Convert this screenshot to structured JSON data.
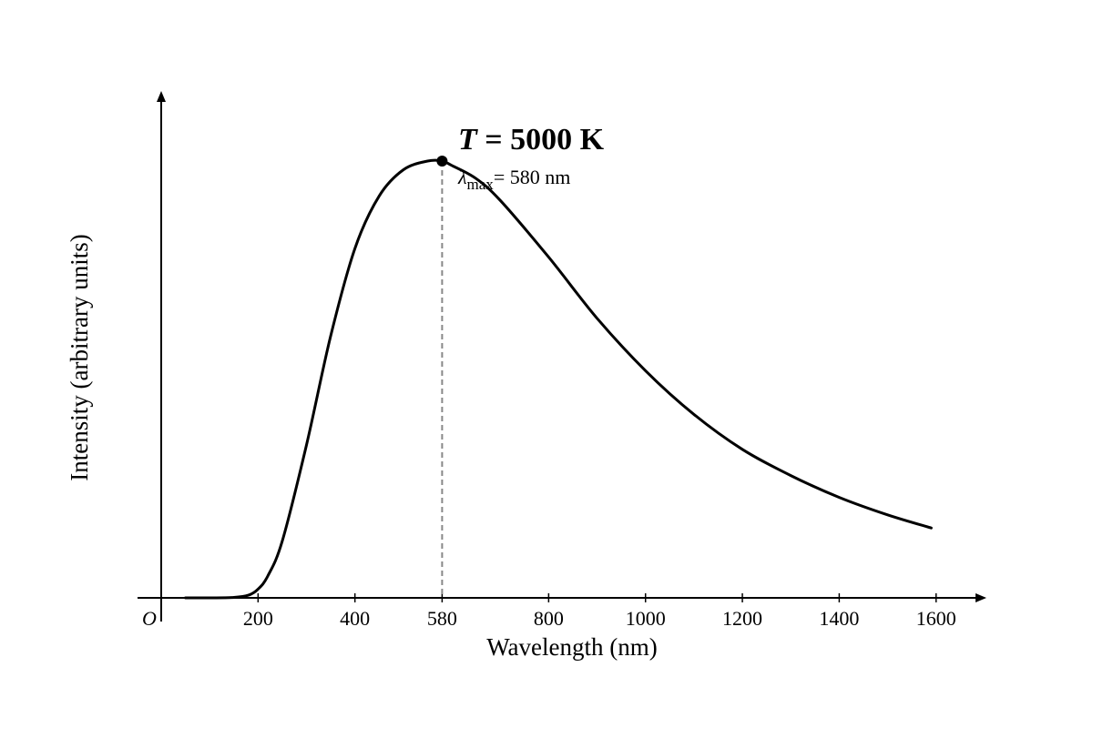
{
  "chart_data": {
    "type": "line",
    "xlabel": "Wavelength (nm)",
    "ylabel": "Intensity (arbitrary units)",
    "origin_label": "O",
    "x_ticks": [
      200,
      400,
      580,
      800,
      1000,
      1200,
      1400,
      1600
    ],
    "xlim": [
      0,
      1700
    ],
    "ylim": [
      0,
      1.1
    ],
    "y_ticks_labeled": false,
    "grid": false,
    "legend": "none",
    "series": [
      {
        "temperature_label": {
          "prefix": "T",
          "text": " = 5000 K"
        },
        "x": [
          50,
          100,
          150,
          180,
          200,
          220,
          250,
          300,
          350,
          400,
          450,
          500,
          550,
          580,
          600,
          650,
          700,
          800,
          900,
          1000,
          1100,
          1200,
          1300,
          1400,
          1500,
          1590
        ],
        "y": [
          0.0,
          0.0,
          0.001,
          0.006,
          0.02,
          0.05,
          0.13,
          0.35,
          0.6,
          0.8,
          0.92,
          0.98,
          1.0,
          1.0,
          0.99,
          0.96,
          0.91,
          0.78,
          0.64,
          0.52,
          0.42,
          0.34,
          0.28,
          0.23,
          0.19,
          0.16
        ]
      }
    ],
    "annotations": [
      {
        "type": "peak-marker",
        "x": 580,
        "y": 1.0,
        "symbol": "λ",
        "subscript": "max",
        "text": "= 580 nm"
      }
    ]
  },
  "colors": {
    "curve": "#000000",
    "axes": "#000000",
    "dashed_line": "#888888",
    "background": "#ffffff"
  }
}
